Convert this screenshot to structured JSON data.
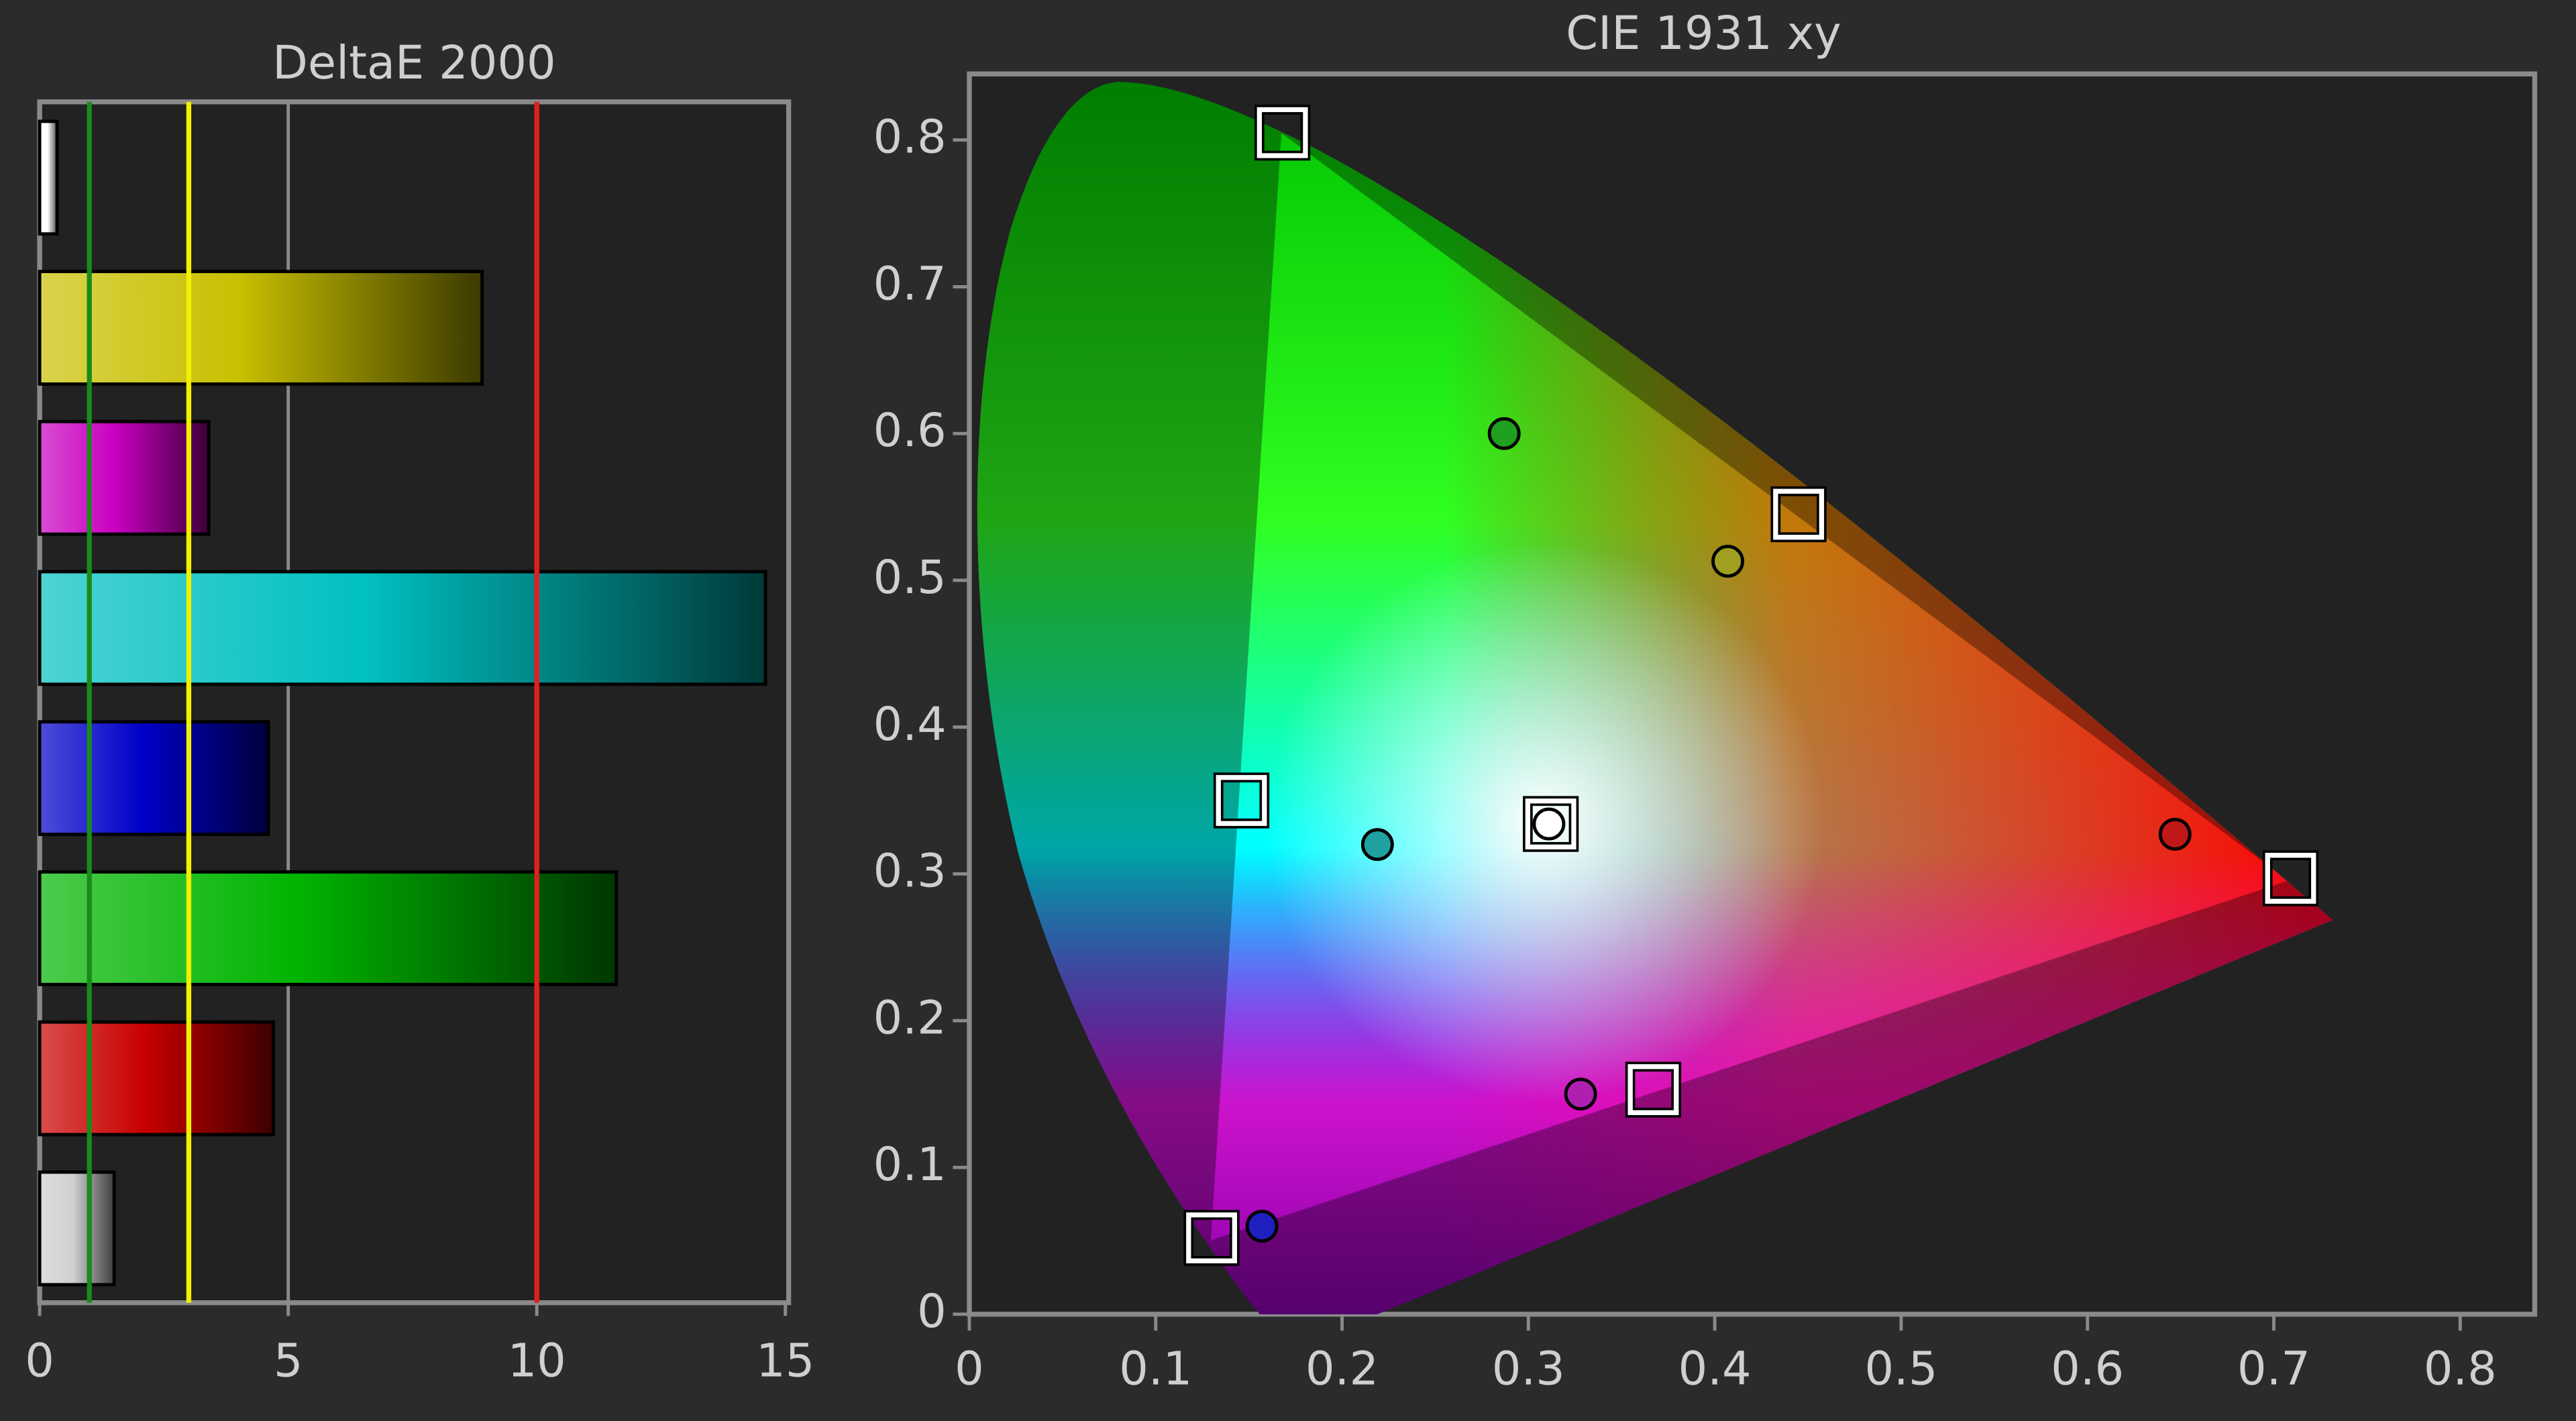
{
  "chart_data": [
    {
      "type": "hbar",
      "title": "DeltaE 2000",
      "categories": [
        null,
        null,
        null,
        null,
        null,
        null,
        null,
        null
      ],
      "values": [
        0.35,
        8.9,
        3.4,
        14.6,
        4.6,
        11.6,
        4.7,
        1.5
      ],
      "colors": [
        "#ffffff",
        "#c8c000",
        "#c800c0",
        "#00c0c0",
        "#0000c8",
        "#00b400",
        "#c80000",
        "#d0d0d0"
      ],
      "xlim": [
        0,
        15
      ],
      "xticks": [
        0,
        5,
        10,
        15
      ],
      "grid": true,
      "reference_lines": [
        {
          "value": 1,
          "color": "#1a8a1a"
        },
        {
          "value": 3,
          "color": "#f0f000"
        },
        {
          "value": 10,
          "color": "#e02020"
        }
      ]
    },
    {
      "type": "scatter",
      "title": "CIE 1931 xy",
      "xlim": [
        0,
        0.84
      ],
      "ylim": [
        0,
        0.845
      ],
      "xticks": [
        0,
        0.1,
        0.2,
        0.3,
        0.4,
        0.5,
        0.6,
        0.7,
        0.8
      ],
      "yticks": [
        0,
        0.1,
        0.2,
        0.3,
        0.4,
        0.5,
        0.6,
        0.7,
        0.8
      ],
      "targets": {
        "x": [
          0.168,
          0.445,
          0.146,
          0.312,
          0.709,
          0.367,
          0.13
        ],
        "y": [
          0.805,
          0.545,
          0.35,
          0.334,
          0.297,
          0.153,
          0.052
        ]
      },
      "measured": {
        "x": [
          0.287,
          0.407,
          0.219,
          0.311,
          0.647,
          0.328,
          0.157
        ],
        "y": [
          0.6,
          0.513,
          0.32,
          0.334,
          0.327,
          0.15,
          0.06
        ],
        "colors": [
          "#1fa01f",
          "#a0a020",
          "#20a0a0",
          "#ffffff",
          "#c01818",
          "#b020b0",
          "#2020c0"
        ]
      }
    }
  ]
}
